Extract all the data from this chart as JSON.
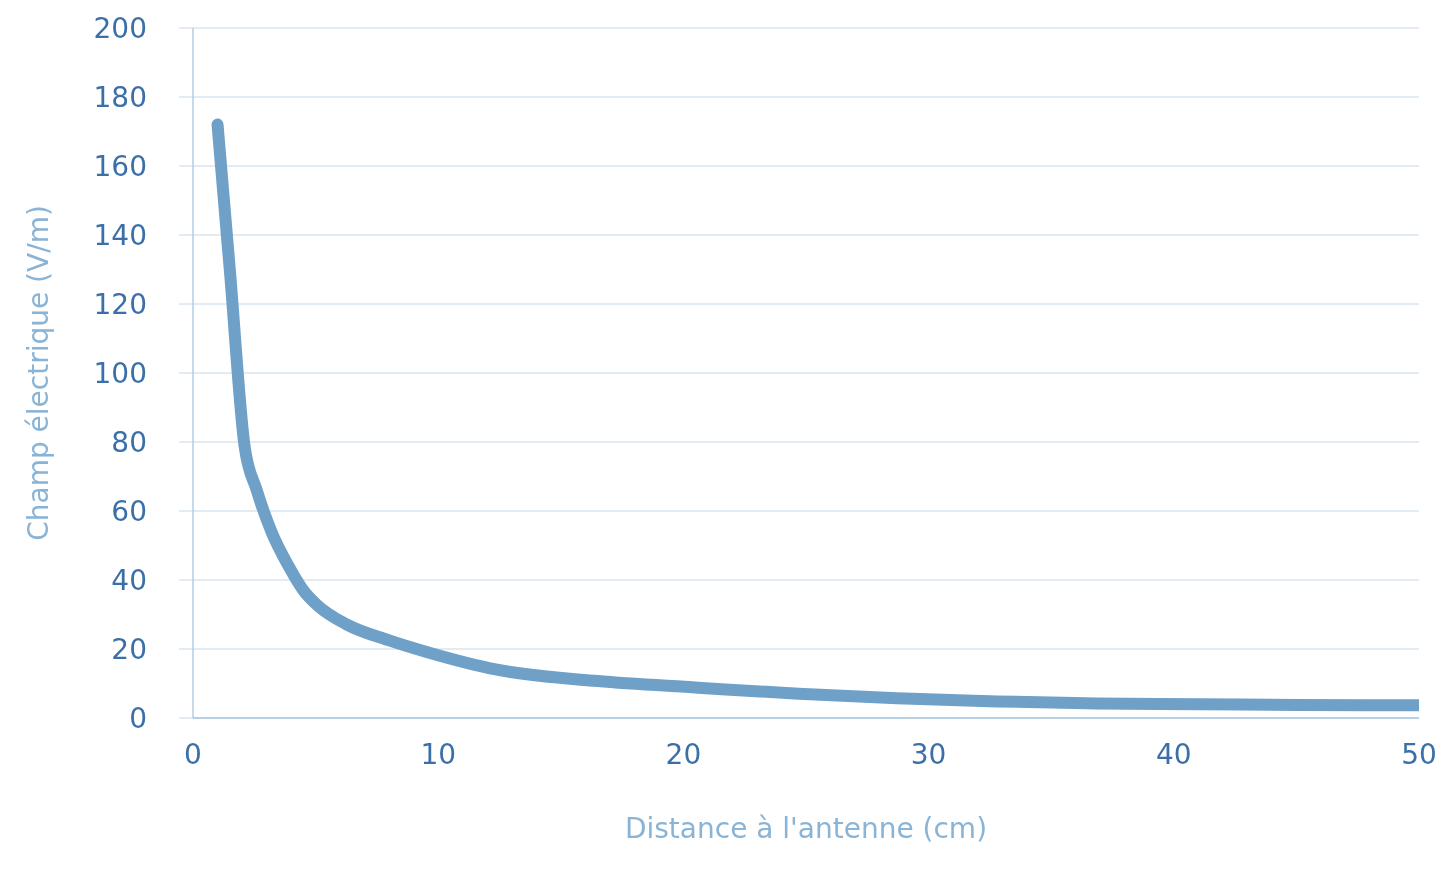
{
  "chart_data": {
    "type": "line",
    "xlabel": "Distance à l'antenne (cm)",
    "ylabel": "Champ électrique (V/m)",
    "x": [
      1,
      1.5,
      2.1,
      2.6,
      3.2,
      3.9,
      4.5,
      5.1,
      6.3,
      8,
      9.6,
      12.4,
      16.5,
      20.6,
      24.7,
      28.7,
      32.8,
      36.9,
      41,
      45,
      50
    ],
    "series": [
      {
        "color": "#6fa0c8",
        "values": [
          172,
          130,
          79,
          66,
          54,
          44,
          37,
          32.5,
          27,
          22.5,
          19,
          14,
          10.7,
          8.8,
          7,
          5.7,
          4.8,
          4.2,
          4,
          3.8,
          3.7
        ]
      }
    ],
    "xlim": [
      0,
      50
    ],
    "xticks": [
      0,
      10,
      20,
      30,
      40,
      50
    ],
    "ylim": [
      0,
      200
    ],
    "yticks": [
      0,
      20,
      40,
      60,
      80,
      100,
      120,
      140,
      160,
      180,
      200
    ],
    "grid": "y",
    "marker": "none",
    "line_style": "solid"
  }
}
